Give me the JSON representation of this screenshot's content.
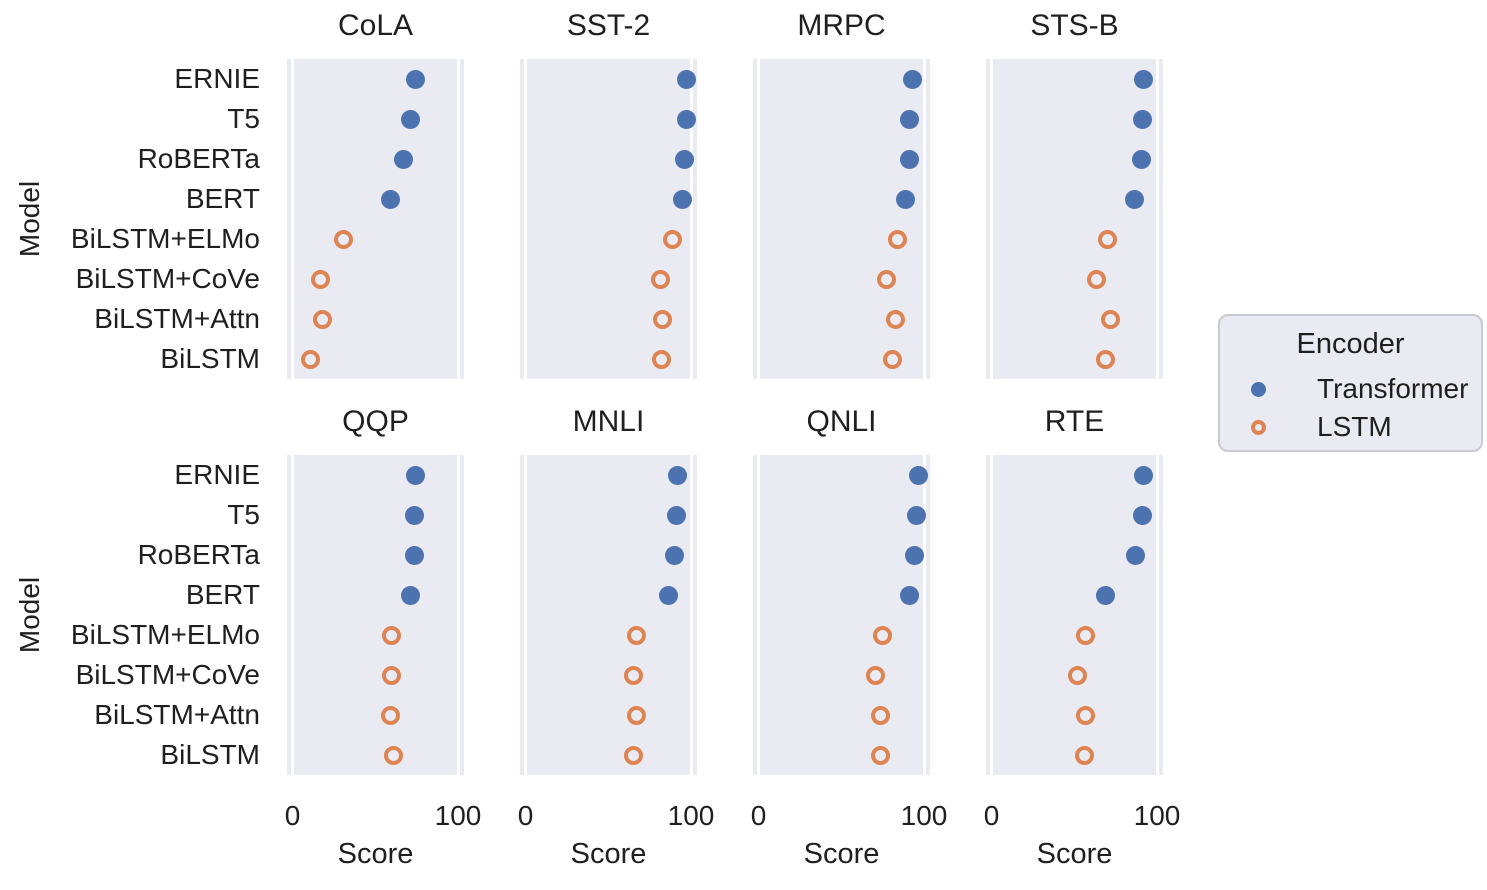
{
  "chart_data": {
    "type": "scatter",
    "subtype": "faceted-categorical-dot-plot",
    "facet_grid": {
      "rows": 2,
      "cols": 4
    },
    "categories": [
      "ERNIE",
      "T5",
      "RoBERTa",
      "BERT",
      "BiLSTM+ELMo",
      "BiLSTM+CoVe",
      "BiLSTM+Attn",
      "BiLSTM"
    ],
    "encoder_by_model": [
      "Transformer",
      "Transformer",
      "Transformer",
      "Transformer",
      "LSTM",
      "LSTM",
      "LSTM",
      "LSTM"
    ],
    "facets": [
      {
        "title": "CoLA",
        "values": [
          74.5,
          71,
          67,
          59.5,
          31,
          17,
          18,
          11
        ]
      },
      {
        "title": "SST-2",
        "values": [
          97.5,
          97,
          96,
          95,
          89,
          81.5,
          82.5,
          82
        ]
      },
      {
        "title": "MRPC",
        "values": [
          93,
          91.5,
          91,
          89,
          84,
          77.5,
          82.5,
          81
        ]
      },
      {
        "title": "STS-B",
        "values": [
          92,
          91.5,
          90.5,
          86.5,
          70,
          63.5,
          72,
          69
        ]
      },
      {
        "title": "QQP",
        "values": [
          74.5,
          74,
          73.5,
          71,
          60,
          60,
          59,
          61
        ]
      },
      {
        "title": "MNLI",
        "values": [
          92,
          91,
          90,
          86.5,
          67,
          65,
          67,
          65
        ]
      },
      {
        "title": "QNLI",
        "values": [
          96.5,
          95.5,
          94.5,
          91,
          75,
          70.5,
          74,
          74
        ]
      },
      {
        "title": "RTE",
        "values": [
          92,
          91,
          87,
          69,
          56.5,
          52,
          57,
          56
        ]
      }
    ],
    "xlabel": "Score",
    "ylabel": "Model",
    "xticks": [
      "0",
      "100"
    ],
    "xtick_values": [
      0,
      100
    ],
    "xlim": [
      -3.3,
      103.3
    ],
    "grid": "vertical white gridlines at x=0 and x=100 only",
    "legend": {
      "title": "Encoder",
      "position": "right",
      "entries": [
        {
          "label": "Transformer",
          "marker": "filled-circle",
          "color": "#4C72B0"
        },
        {
          "label": "LSTM",
          "marker": "open-circle",
          "color": "#DD8452"
        }
      ]
    },
    "colors": {
      "transformer": "#4C72B0",
      "lstm": "#DD8452",
      "panel_bg": "#EAEAF2",
      "gridline": "#FFFFFF",
      "text": "#1F1F1F"
    }
  }
}
